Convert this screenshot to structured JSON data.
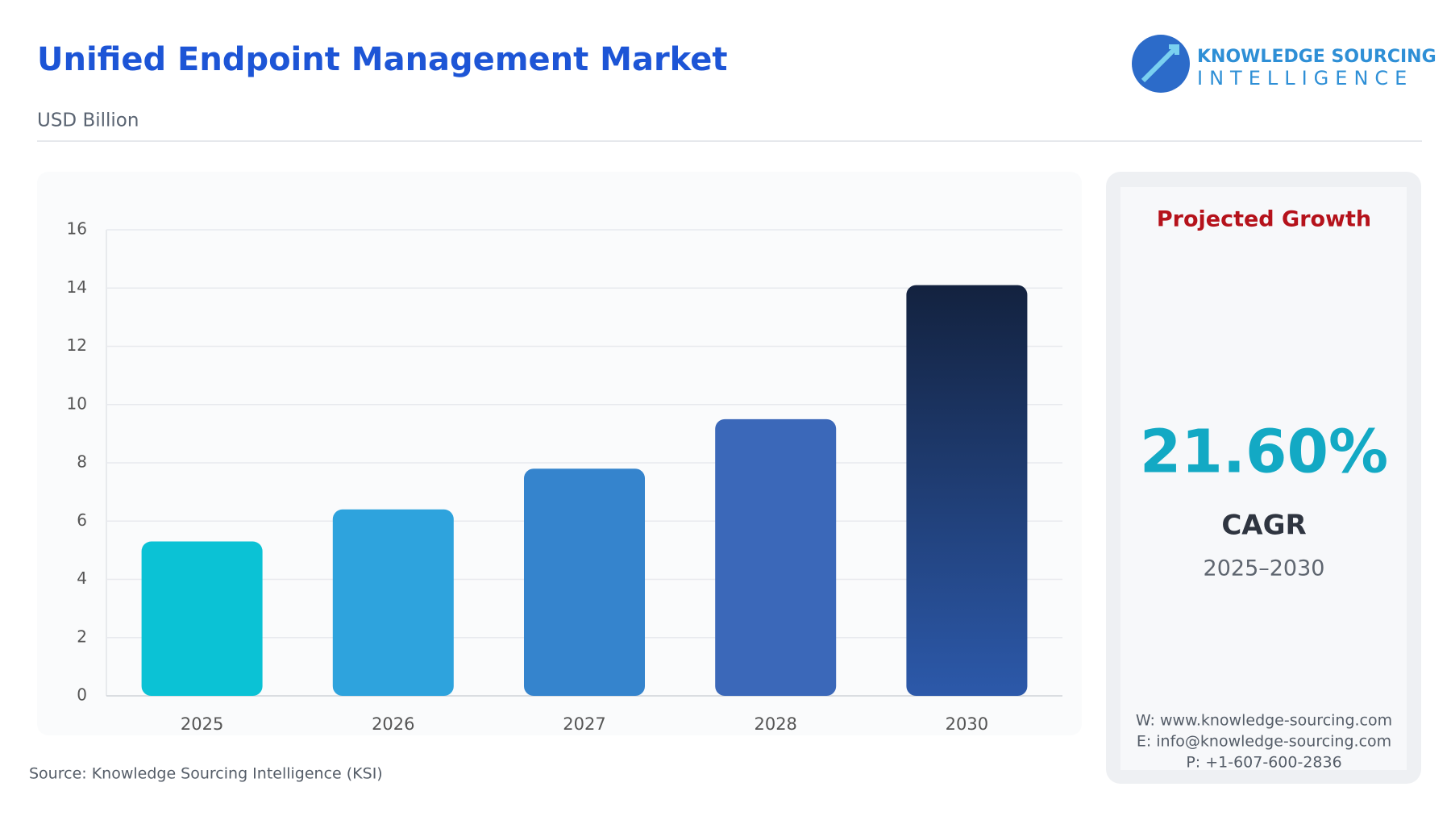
{
  "chart_data": {
    "type": "bar",
    "title": "Unified Endpoint Management Market",
    "subtitle": "USD Billion",
    "source": "Source: Knowledge Sourcing Intelligence (KSI)",
    "categories": [
      "2025",
      "2026",
      "2027",
      "2028",
      "2030"
    ],
    "values": [
      5.3,
      6.4,
      7.8,
      9.5,
      14.1
    ],
    "colors": [
      "#0bc2d5",
      "#2ea3dd",
      "#3584cd",
      "#3b68b9",
      "#1c3566"
    ],
    "ylim": [
      0,
      16
    ],
    "yticks": [
      0,
      2,
      4,
      6,
      8,
      10,
      12,
      14,
      16
    ],
    "grid": true
  },
  "panel": {
    "heading": "Projected Growth",
    "value": "21.60%",
    "label": "CAGR",
    "period": "2025–2030",
    "contacts": [
      "W: www.knowledge-sourcing.com",
      "E: info@knowledge-sourcing.com",
      "P: +1-607-600-2836"
    ]
  },
  "logo": {
    "line1": "KNOWLEDGE SOURCING",
    "line2": "INTELLIGENCE"
  }
}
